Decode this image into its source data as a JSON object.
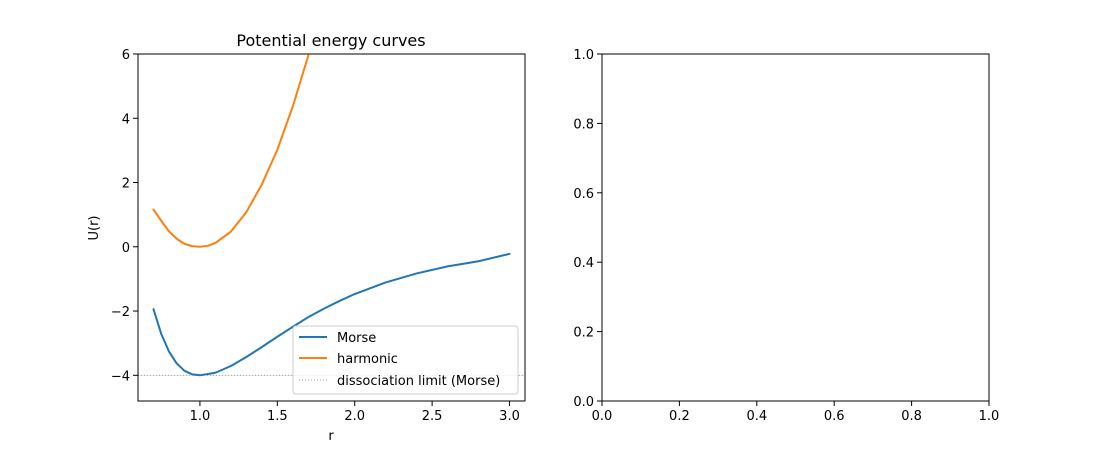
{
  "chart_data": [
    {
      "type": "line",
      "title": "Potential energy curves",
      "xlabel": "r",
      "ylabel": "U(r)",
      "xlim": [
        0.6,
        3.1
      ],
      "ylim": [
        -4.8,
        6.0
      ],
      "xticks": [
        1.0,
        1.5,
        2.0,
        2.5,
        3.0
      ],
      "xtick_labels": [
        "1.0",
        "1.5",
        "2.0",
        "2.5",
        "3.0"
      ],
      "yticks": [
        -4,
        -2,
        0,
        2,
        4,
        6
      ],
      "ytick_labels": [
        "−4",
        "−2",
        "0",
        "2",
        "4",
        "6"
      ],
      "grid": false,
      "legend_position": "lower right",
      "series": [
        {
          "name": "Morse",
          "color": "#1f77b4",
          "linestyle": "solid",
          "x": [
            0.7,
            0.75,
            0.8,
            0.85,
            0.9,
            0.95,
            1.0,
            1.1,
            1.2,
            1.3,
            1.4,
            1.5,
            1.6,
            1.7,
            1.8,
            1.9,
            2.0,
            2.2,
            2.4,
            2.6,
            2.8,
            3.0
          ],
          "y": [
            -1.94,
            -2.71,
            -3.26,
            -3.63,
            -3.86,
            -3.97,
            -4.0,
            -3.92,
            -3.71,
            -3.43,
            -3.12,
            -2.8,
            -2.49,
            -2.19,
            -1.93,
            -1.69,
            -1.47,
            -1.11,
            -0.83,
            -0.61,
            -0.45,
            -0.22
          ]
        },
        {
          "name": "harmonic",
          "color": "#ff7f0e",
          "linestyle": "solid",
          "x": [
            0.7,
            0.75,
            0.8,
            0.85,
            0.9,
            0.95,
            1.0,
            1.05,
            1.1,
            1.2,
            1.3,
            1.4,
            1.5,
            1.6,
            1.7
          ],
          "y": [
            1.16,
            0.81,
            0.48,
            0.25,
            0.09,
            0.02,
            0.0,
            0.03,
            0.12,
            0.47,
            1.08,
            1.94,
            3.02,
            4.37,
            5.95
          ]
        },
        {
          "name": "dissociation limit (Morse)",
          "color": "#999999",
          "linestyle": "dotted",
          "x": [
            0.6,
            3.1
          ],
          "y": [
            -4.0,
            -4.0
          ]
        }
      ]
    },
    {
      "type": "line",
      "title": "",
      "xlabel": "",
      "ylabel": "",
      "xlim": [
        0.0,
        1.0
      ],
      "ylim": [
        0.0,
        1.0
      ],
      "xticks": [
        0.0,
        0.2,
        0.4,
        0.6,
        0.8,
        1.0
      ],
      "xtick_labels": [
        "0.0",
        "0.2",
        "0.4",
        "0.6",
        "0.8",
        "1.0"
      ],
      "yticks": [
        0.0,
        0.2,
        0.4,
        0.6,
        0.8,
        1.0
      ],
      "ytick_labels": [
        "0.0",
        "0.2",
        "0.4",
        "0.6",
        "0.8",
        "1.0"
      ],
      "grid": false,
      "series": []
    }
  ]
}
